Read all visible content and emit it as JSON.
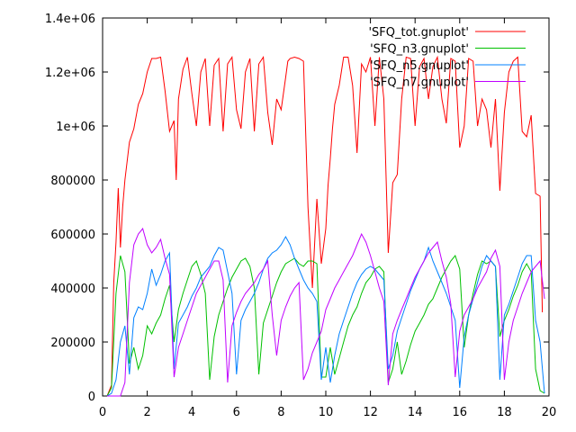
{
  "chart_data": {
    "type": "line",
    "title": "",
    "xlabel": "",
    "ylabel": "",
    "xlim": [
      0,
      20
    ],
    "ylim": [
      0,
      1400000
    ],
    "grid": false,
    "legend_position": "top-right",
    "x_ticks": [
      0,
      2,
      4,
      6,
      8,
      10,
      12,
      14,
      16,
      18,
      20
    ],
    "x_tick_labels": [
      "0",
      "2",
      "4",
      "6",
      "8",
      "10",
      "12",
      "14",
      "16",
      "18",
      "20"
    ],
    "y_ticks": [
      0,
      200000,
      400000,
      600000,
      800000,
      1000000,
      1200000,
      1400000
    ],
    "y_tick_labels": [
      "0",
      "200000",
      "400000",
      "600000",
      "800000",
      "1e+06",
      "1.2e+06",
      "1.4e+06"
    ],
    "series": [
      {
        "name": "'SFQ_tot.gnuplot'",
        "color": "#ff0000",
        "x": [
          0.2,
          0.4,
          0.5,
          0.6,
          0.7,
          0.8,
          0.9,
          1.0,
          1.2,
          1.4,
          1.6,
          1.8,
          2.0,
          2.2,
          2.4,
          2.6,
          2.8,
          3.0,
          3.2,
          3.3,
          3.4,
          3.6,
          3.8,
          4.0,
          4.2,
          4.4,
          4.6,
          4.8,
          5.0,
          5.2,
          5.4,
          5.6,
          5.8,
          6.0,
          6.2,
          6.4,
          6.6,
          6.8,
          7.0,
          7.2,
          7.4,
          7.6,
          7.8,
          8.0,
          8.2,
          8.3,
          8.4,
          8.6,
          8.8,
          9.0,
          9.2,
          9.4,
          9.6,
          9.8,
          10.0,
          10.1,
          10.2,
          10.3,
          10.4,
          10.6,
          10.8,
          11.0,
          11.2,
          11.4,
          11.6,
          11.8,
          12.0,
          12.2,
          12.4,
          12.6,
          12.8,
          13.0,
          13.2,
          13.4,
          13.6,
          13.8,
          14.0,
          14.2,
          14.4,
          14.6,
          14.8,
          15.0,
          15.2,
          15.4,
          15.6,
          15.8,
          16.0,
          16.2,
          16.4,
          16.6,
          16.8,
          17.0,
          17.2,
          17.4,
          17.6,
          17.8,
          18.0,
          18.2,
          18.4,
          18.6,
          18.8,
          19.0,
          19.2,
          19.4,
          19.6,
          19.7
        ],
        "y": [
          0,
          40000,
          420000,
          570000,
          770000,
          550000,
          700000,
          800000,
          940000,
          990000,
          1080000,
          1120000,
          1200000,
          1250000,
          1250000,
          1255000,
          1130000,
          980000,
          1020000,
          800000,
          1100000,
          1210000,
          1255000,
          1120000,
          1000000,
          1200000,
          1250000,
          1000000,
          1225000,
          1250000,
          980000,
          1230000,
          1255000,
          1060000,
          990000,
          1200000,
          1250000,
          980000,
          1230000,
          1255000,
          1050000,
          930000,
          1100000,
          1060000,
          1180000,
          1240000,
          1250000,
          1255000,
          1250000,
          1240000,
          700000,
          400000,
          730000,
          490000,
          620000,
          780000,
          880000,
          990000,
          1080000,
          1150000,
          1255000,
          1255000,
          1150000,
          900000,
          1230000,
          1200000,
          1255000,
          1000000,
          1255000,
          1100000,
          530000,
          790000,
          820000,
          1100000,
          1255000,
          1250000,
          1000000,
          1220000,
          1250000,
          1100000,
          1220000,
          1255000,
          1100000,
          1010000,
          1250000,
          1240000,
          920000,
          1000000,
          1250000,
          1240000,
          1000000,
          1100000,
          1060000,
          920000,
          1100000,
          760000,
          1050000,
          1200000,
          1240000,
          1255000,
          980000,
          960000,
          1040000,
          750000,
          740000,
          310000
        ]
      },
      {
        "name": "'SFQ_n3.gnuplot'",
        "color": "#00c000",
        "x": [
          0.2,
          0.4,
          0.6,
          0.8,
          1.0,
          1.2,
          1.4,
          1.6,
          1.8,
          2.0,
          2.2,
          2.4,
          2.6,
          2.8,
          3.0,
          3.2,
          3.4,
          3.6,
          3.8,
          4.0,
          4.2,
          4.4,
          4.6,
          4.8,
          5.0,
          5.2,
          5.4,
          5.6,
          5.8,
          6.0,
          6.2,
          6.4,
          6.6,
          6.8,
          7.0,
          7.2,
          7.4,
          7.6,
          7.8,
          8.0,
          8.2,
          8.4,
          8.6,
          8.8,
          9.0,
          9.2,
          9.4,
          9.6,
          9.8,
          10.0,
          10.2,
          10.4,
          10.6,
          10.8,
          11.0,
          11.2,
          11.4,
          11.6,
          11.8,
          12.0,
          12.2,
          12.4,
          12.6,
          12.8,
          13.0,
          13.2,
          13.4,
          13.6,
          13.8,
          14.0,
          14.2,
          14.4,
          14.6,
          14.8,
          15.0,
          15.2,
          15.4,
          15.6,
          15.8,
          16.0,
          16.2,
          16.4,
          16.6,
          16.8,
          17.0,
          17.2,
          17.4,
          17.6,
          17.8,
          18.0,
          18.2,
          18.4,
          18.6,
          18.8,
          19.0,
          19.2,
          19.4,
          19.6,
          19.8
        ],
        "y": [
          0,
          30000,
          380000,
          520000,
          460000,
          120000,
          180000,
          100000,
          150000,
          260000,
          230000,
          270000,
          300000,
          360000,
          410000,
          200000,
          320000,
          380000,
          430000,
          480000,
          500000,
          450000,
          380000,
          60000,
          220000,
          300000,
          350000,
          400000,
          440000,
          470000,
          500000,
          510000,
          480000,
          400000,
          80000,
          270000,
          320000,
          370000,
          420000,
          460000,
          490000,
          500000,
          510000,
          490000,
          480000,
          500000,
          500000,
          490000,
          70000,
          70000,
          180000,
          80000,
          140000,
          200000,
          260000,
          300000,
          330000,
          380000,
          420000,
          440000,
          470000,
          480000,
          460000,
          50000,
          100000,
          200000,
          80000,
          130000,
          190000,
          240000,
          270000,
          300000,
          340000,
          360000,
          400000,
          440000,
          470000,
          500000,
          520000,
          470000,
          180000,
          300000,
          380000,
          450000,
          500000,
          490000,
          500000,
          480000,
          220000,
          280000,
          320000,
          370000,
          410000,
          460000,
          490000,
          460000,
          100000,
          20000,
          10000
        ]
      },
      {
        "name": "'SFQ_n5.gnuplot'",
        "color": "#0080ff",
        "x": [
          0.2,
          0.4,
          0.6,
          0.8,
          1.0,
          1.2,
          1.4,
          1.6,
          1.8,
          2.0,
          2.2,
          2.4,
          2.6,
          2.8,
          3.0,
          3.2,
          3.4,
          3.6,
          3.8,
          4.0,
          4.2,
          4.4,
          4.6,
          4.8,
          5.0,
          5.2,
          5.4,
          5.6,
          5.8,
          6.0,
          6.2,
          6.4,
          6.6,
          6.8,
          7.0,
          7.2,
          7.4,
          7.6,
          7.8,
          8.0,
          8.2,
          8.4,
          8.6,
          8.8,
          9.0,
          9.2,
          9.4,
          9.6,
          9.8,
          10.0,
          10.2,
          10.4,
          10.6,
          10.8,
          11.0,
          11.2,
          11.4,
          11.6,
          11.8,
          12.0,
          12.2,
          12.4,
          12.6,
          12.8,
          13.0,
          13.2,
          13.4,
          13.6,
          13.8,
          14.0,
          14.2,
          14.4,
          14.6,
          14.8,
          15.0,
          15.2,
          15.4,
          15.6,
          15.8,
          16.0,
          16.2,
          16.4,
          16.6,
          16.8,
          17.0,
          17.2,
          17.4,
          17.6,
          17.8,
          18.0,
          18.2,
          18.4,
          18.6,
          18.8,
          19.0,
          19.2,
          19.4,
          19.6,
          19.8
        ],
        "y": [
          0,
          10000,
          60000,
          200000,
          260000,
          80000,
          290000,
          330000,
          320000,
          380000,
          470000,
          410000,
          450000,
          500000,
          530000,
          100000,
          270000,
          300000,
          330000,
          370000,
          400000,
          440000,
          460000,
          480000,
          520000,
          550000,
          540000,
          460000,
          380000,
          80000,
          280000,
          320000,
          350000,
          380000,
          420000,
          470000,
          510000,
          530000,
          540000,
          560000,
          590000,
          560000,
          510000,
          470000,
          430000,
          400000,
          380000,
          350000,
          60000,
          180000,
          50000,
          150000,
          230000,
          280000,
          330000,
          380000,
          420000,
          450000,
          470000,
          480000,
          470000,
          450000,
          430000,
          100000,
          150000,
          240000,
          290000,
          340000,
          390000,
          430000,
          470000,
          500000,
          550000,
          500000,
          460000,
          420000,
          380000,
          330000,
          280000,
          30000,
          220000,
          300000,
          360000,
          420000,
          480000,
          520000,
          500000,
          480000,
          60000,
          300000,
          340000,
          390000,
          440000,
          490000,
          520000,
          520000,
          280000,
          200000,
          10000
        ]
      },
      {
        "name": "'SFQ_n7.gnuplot'",
        "color": "#c000ff",
        "x": [
          0.2,
          0.4,
          0.6,
          0.8,
          1.0,
          1.2,
          1.4,
          1.6,
          1.8,
          2.0,
          2.2,
          2.4,
          2.6,
          2.8,
          3.0,
          3.2,
          3.4,
          3.6,
          3.8,
          4.0,
          4.2,
          4.4,
          4.6,
          4.8,
          5.0,
          5.2,
          5.4,
          5.6,
          5.8,
          6.0,
          6.2,
          6.4,
          6.6,
          6.8,
          7.0,
          7.2,
          7.4,
          7.6,
          7.8,
          8.0,
          8.2,
          8.4,
          8.6,
          8.8,
          9.0,
          9.2,
          9.4,
          9.6,
          9.8,
          10.0,
          10.2,
          10.4,
          10.6,
          10.8,
          11.0,
          11.2,
          11.4,
          11.6,
          11.8,
          12.0,
          12.2,
          12.4,
          12.6,
          12.8,
          13.0,
          13.2,
          13.4,
          13.6,
          13.8,
          14.0,
          14.2,
          14.4,
          14.6,
          14.8,
          15.0,
          15.2,
          15.4,
          15.6,
          15.8,
          16.0,
          16.2,
          16.4,
          16.6,
          16.8,
          17.0,
          17.2,
          17.4,
          17.6,
          17.8,
          18.0,
          18.2,
          18.4,
          18.6,
          18.8,
          19.0,
          19.2,
          19.4,
          19.6,
          19.8
        ],
        "y": [
          0,
          0,
          0,
          0,
          50000,
          420000,
          560000,
          600000,
          620000,
          560000,
          530000,
          550000,
          580000,
          510000,
          450000,
          70000,
          180000,
          230000,
          280000,
          330000,
          380000,
          410000,
          440000,
          470000,
          500000,
          500000,
          430000,
          50000,
          260000,
          310000,
          350000,
          380000,
          400000,
          420000,
          450000,
          470000,
          500000,
          300000,
          150000,
          280000,
          330000,
          370000,
          400000,
          420000,
          60000,
          100000,
          160000,
          200000,
          240000,
          320000,
          360000,
          400000,
          430000,
          460000,
          490000,
          520000,
          560000,
          600000,
          570000,
          520000,
          460000,
          400000,
          350000,
          40000,
          230000,
          280000,
          320000,
          360000,
          400000,
          440000,
          470000,
          500000,
          530000,
          550000,
          570000,
          500000,
          440000,
          340000,
          70000,
          240000,
          300000,
          330000,
          360000,
          400000,
          430000,
          460000,
          510000,
          540000,
          480000,
          60000,
          200000,
          280000,
          330000,
          380000,
          420000,
          460000,
          480000,
          500000,
          360000
        ]
      }
    ]
  }
}
